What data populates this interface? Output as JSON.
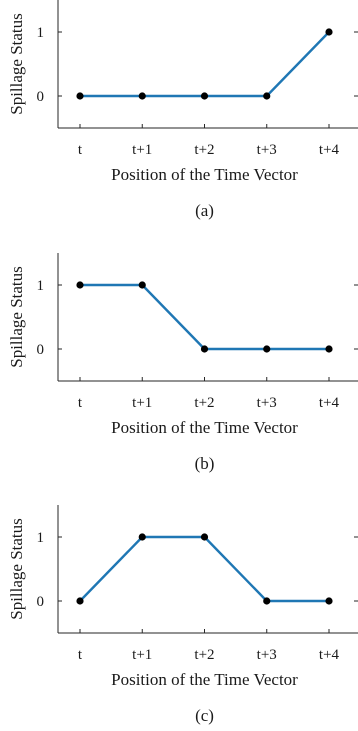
{
  "chart_data": [
    {
      "type": "line",
      "categories": [
        "t",
        "t+1",
        "t+2",
        "t+3",
        "t+4"
      ],
      "values": [
        0,
        0,
        0,
        0,
        1
      ],
      "xlabel": "Position of the Time Vector",
      "ylabel": "Spillage Status",
      "yticks": [
        0,
        1
      ],
      "ylim": [
        -0.5,
        1.5
      ],
      "panel_label": "(a)",
      "line_color": "#1f77b4",
      "marker_color": "#000000",
      "grid": false
    },
    {
      "type": "line",
      "categories": [
        "t",
        "t+1",
        "t+2",
        "t+3",
        "t+4"
      ],
      "values": [
        1,
        1,
        0,
        0,
        0
      ],
      "xlabel": "Position of the Time Vector",
      "ylabel": "Spillage Status",
      "yticks": [
        0,
        1
      ],
      "ylim": [
        -0.5,
        1.5
      ],
      "panel_label": "(b)",
      "line_color": "#1f77b4",
      "marker_color": "#000000",
      "grid": false
    },
    {
      "type": "line",
      "categories": [
        "t",
        "t+1",
        "t+2",
        "t+3",
        "t+4"
      ],
      "values": [
        0,
        1,
        1,
        0,
        0
      ],
      "xlabel": "Position of the Time Vector",
      "ylabel": "Spillage Status",
      "yticks": [
        0,
        1
      ],
      "ylim": [
        -0.5,
        1.5
      ],
      "panel_label": "(c)",
      "line_color": "#1f77b4",
      "marker_color": "#000000",
      "grid": false
    }
  ]
}
